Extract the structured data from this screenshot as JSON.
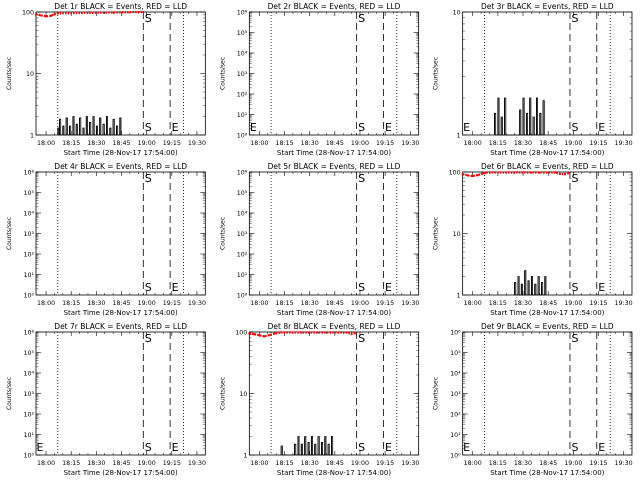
{
  "chart_data": [
    {
      "type": "line",
      "title": "Det 1r BLACK = Events, RED = LLD",
      "xlabel": "Start Time (28-Nov-17 17:54:00)",
      "ylabel": "Counts/sec",
      "yscale": "log",
      "ylim": [
        1,
        100
      ],
      "yticks": [
        "1",
        "10",
        "100"
      ],
      "xticks": [
        "18:00",
        "18:15",
        "18:30",
        "18:45",
        "19:00",
        "19:15",
        "19:30"
      ],
      "markers": [
        {
          "label": "",
          "time": "18:07",
          "style": "dotted"
        },
        {
          "label": "S",
          "time": "18:58",
          "style": "dashed"
        },
        {
          "label": "E",
          "time": "19:14",
          "style": "dashed"
        },
        {
          "label": "",
          "time": "19:22",
          "style": "dotted"
        }
      ],
      "series": [
        {
          "color": "#000000",
          "points": [
            [
              "18:07",
              1.3
            ],
            [
              "18:08",
              1.8
            ],
            [
              "18:10",
              1.4
            ],
            [
              "18:12",
              1.9
            ],
            [
              "18:14",
              1.4
            ],
            [
              "18:16",
              2.0
            ],
            [
              "18:18",
              1.5
            ],
            [
              "18:20",
              1.9
            ],
            [
              "18:22",
              1.3
            ],
            [
              "18:24",
              2.0
            ],
            [
              "18:26",
              1.6
            ],
            [
              "18:28",
              2.0
            ],
            [
              "18:30",
              1.4
            ],
            [
              "18:32",
              1.9
            ],
            [
              "18:34",
              1.5
            ],
            [
              "18:36",
              2.0
            ],
            [
              "18:38",
              1.3
            ],
            [
              "18:40",
              1.8
            ],
            [
              "18:42",
              1.4
            ],
            [
              "18:44",
              1.9
            ]
          ]
        },
        {
          "color": "#ff0000",
          "points": [
            [
              "17:54",
              92
            ],
            [
              "17:57",
              88
            ],
            [
              "18:00",
              85
            ],
            [
              "18:03",
              87
            ],
            [
              "18:05",
              92
            ],
            [
              "18:07",
              95
            ],
            [
              "18:58",
              100
            ]
          ]
        }
      ]
    },
    {
      "type": "line",
      "title": "Det 2r BLACK = Events, RED = LLD",
      "xlabel": "Start Time (28-Nov-17 17:54:00)",
      "ylabel": "Counts/sec",
      "yscale": "log",
      "ylim": [
        1,
        1000000
      ],
      "yticks": [
        "10⁰",
        "10¹",
        "10²",
        "10³",
        "10⁴",
        "10⁵",
        "10⁶"
      ],
      "xticks": [
        "18:00",
        "18:15",
        "18:30",
        "18:45",
        "19:00",
        "19:15",
        "19:30"
      ],
      "markers": [
        {
          "label": "E",
          "time": "17:54",
          "style": "none"
        },
        {
          "label": "",
          "time": "18:07",
          "style": "dotted"
        },
        {
          "label": "S",
          "time": "18:58",
          "style": "dashed"
        },
        {
          "label": "E",
          "time": "19:14",
          "style": "dashed"
        },
        {
          "label": "",
          "time": "19:22",
          "style": "dotted"
        }
      ],
      "series": []
    },
    {
      "type": "line",
      "title": "Det 3r BLACK = Events, RED = LLD",
      "xlabel": "Start Time (28-Nov-17 17:54:00)",
      "ylabel": "Counts/sec",
      "yscale": "log",
      "ylim": [
        1,
        10
      ],
      "yticks": [
        "1",
        "10"
      ],
      "xticks": [
        "18:00",
        "18:15",
        "18:30",
        "18:45",
        "19:00",
        "19:15",
        "19:30"
      ],
      "markers": [
        {
          "label": "E",
          "time": "17:54",
          "style": "none"
        },
        {
          "label": "",
          "time": "18:07",
          "style": "dotted"
        },
        {
          "label": "S",
          "time": "18:58",
          "style": "dashed"
        },
        {
          "label": "E",
          "time": "19:14",
          "style": "dashed"
        },
        {
          "label": "",
          "time": "19:22",
          "style": "dotted"
        }
      ],
      "series": [
        {
          "color": "#000000",
          "points": [
            [
              "18:13",
              1.5
            ],
            [
              "18:15",
              2.0
            ],
            [
              "18:17",
              1.4
            ],
            [
              "18:19",
              2.0
            ],
            [
              "18:28",
              1.6
            ],
            [
              "18:30",
              2.0
            ],
            [
              "18:32",
              1.5
            ],
            [
              "18:34",
              2.0
            ],
            [
              "18:36",
              1.4
            ],
            [
              "18:38",
              2.0
            ],
            [
              "18:40",
              1.5
            ],
            [
              "18:42",
              1.9
            ]
          ]
        }
      ]
    },
    {
      "type": "line",
      "title": "Det 4r BLACK = Events, RED = LLD",
      "xlabel": "Start Time (28-Nov-17 17:54:00)",
      "ylabel": "Counts/sec",
      "yscale": "log",
      "ylim": [
        1,
        1000000
      ],
      "yticks": [
        "10⁰",
        "10¹",
        "10²",
        "10³",
        "10⁴",
        "10⁵",
        "10⁶"
      ],
      "xticks": [
        "18:00",
        "18:15",
        "18:30",
        "18:45",
        "19:00",
        "19:15",
        "19:30"
      ],
      "markers": [
        {
          "label": "",
          "time": "18:07",
          "style": "dotted"
        },
        {
          "label": "S",
          "time": "18:58",
          "style": "dashed"
        },
        {
          "label": "E",
          "time": "19:14",
          "style": "dashed"
        },
        {
          "label": "",
          "time": "19:22",
          "style": "dotted"
        }
      ],
      "series": []
    },
    {
      "type": "line",
      "title": "Det 5r BLACK = Events, RED = LLD",
      "xlabel": "Start Time (28-Nov-17 17:54:00)",
      "ylabel": "Counts/sec",
      "yscale": "log",
      "ylim": [
        1,
        1000000
      ],
      "yticks": [
        "10⁰",
        "10¹",
        "10²",
        "10³",
        "10⁴",
        "10⁵",
        "10⁶"
      ],
      "xticks": [
        "18:00",
        "18:15",
        "18:30",
        "18:45",
        "19:00",
        "19:15",
        "19:30"
      ],
      "markers": [
        {
          "label": "",
          "time": "18:07",
          "style": "dotted"
        },
        {
          "label": "S",
          "time": "18:58",
          "style": "dashed"
        },
        {
          "label": "E",
          "time": "19:14",
          "style": "dashed"
        },
        {
          "label": "",
          "time": "19:22",
          "style": "dotted"
        }
      ],
      "series": []
    },
    {
      "type": "line",
      "title": "Det 6r BLACK = Events, RED = LLD",
      "xlabel": "Start Time (28-Nov-17 17:54:00)",
      "ylabel": "Counts/sec",
      "yscale": "log",
      "ylim": [
        1,
        100
      ],
      "yticks": [
        "1",
        "10",
        "100"
      ],
      "xticks": [
        "18:00",
        "18:15",
        "18:30",
        "18:45",
        "19:00",
        "19:15",
        "19:30"
      ],
      "markers": [
        {
          "label": "",
          "time": "18:07",
          "style": "dotted"
        },
        {
          "label": "S",
          "time": "18:58",
          "style": "dashed"
        },
        {
          "label": "E",
          "time": "19:14",
          "style": "dashed"
        },
        {
          "label": "",
          "time": "19:22",
          "style": "dotted"
        }
      ],
      "series": [
        {
          "color": "#000000",
          "points": [
            [
              "18:25",
              1.6
            ],
            [
              "18:27",
              2.0
            ],
            [
              "18:29",
              1.5
            ],
            [
              "18:31",
              2.5
            ],
            [
              "18:33",
              1.7
            ],
            [
              "18:35",
              2.0
            ],
            [
              "18:37",
              1.5
            ],
            [
              "18:39",
              2.0
            ],
            [
              "18:41",
              1.6
            ],
            [
              "18:43",
              2.0
            ]
          ]
        },
        {
          "color": "#ff0000",
          "points": [
            [
              "17:54",
              92
            ],
            [
              "17:57",
              88
            ],
            [
              "18:00",
              86
            ],
            [
              "18:03",
              89
            ],
            [
              "18:06",
              94
            ],
            [
              "18:08",
              98
            ],
            [
              "18:49",
              98
            ],
            [
              "18:52",
              93
            ],
            [
              "18:55",
              92
            ],
            [
              "18:57",
              96
            ]
          ]
        }
      ]
    },
    {
      "type": "line",
      "title": "Det 7r BLACK = Events, RED = LLD",
      "xlabel": "Start Time (28-Nov-17 17:54:00)",
      "ylabel": "Counts/sec",
      "yscale": "log",
      "ylim": [
        1,
        1000000
      ],
      "yticks": [
        "10⁰",
        "10¹",
        "10²",
        "10³",
        "10⁴",
        "10⁵",
        "10⁶"
      ],
      "xticks": [
        "18:00",
        "18:15",
        "18:30",
        "18:45",
        "19:00",
        "19:15",
        "19:30"
      ],
      "markers": [
        {
          "label": "E",
          "time": "17:54",
          "style": "none"
        },
        {
          "label": "",
          "time": "18:07",
          "style": "dotted"
        },
        {
          "label": "S",
          "time": "18:58",
          "style": "dashed"
        },
        {
          "label": "E",
          "time": "19:14",
          "style": "dashed"
        },
        {
          "label": "",
          "time": "19:22",
          "style": "dotted"
        }
      ],
      "series": []
    },
    {
      "type": "line",
      "title": "Det 8r BLACK = Events, RED = LLD",
      "xlabel": "Start Time (28-Nov-17 17:54:00)",
      "ylabel": "Counts/sec",
      "yscale": "log",
      "ylim": [
        1,
        100
      ],
      "yticks": [
        "1",
        "10",
        "100"
      ],
      "xticks": [
        "18:00",
        "18:15",
        "18:30",
        "18:45",
        "19:00",
        "19:15",
        "19:30"
      ],
      "markers": [
        {
          "label": "",
          "time": "18:07",
          "style": "dotted"
        },
        {
          "label": "S",
          "time": "18:58",
          "style": "dashed"
        },
        {
          "label": "E",
          "time": "19:14",
          "style": "dashed"
        },
        {
          "label": "",
          "time": "19:22",
          "style": "dotted"
        }
      ],
      "series": [
        {
          "color": "#000000",
          "points": [
            [
              "18:13",
              1.4
            ],
            [
              "18:21",
              1.5
            ],
            [
              "18:23",
              2.0
            ],
            [
              "18:25",
              1.5
            ],
            [
              "18:27",
              2.0
            ],
            [
              "18:29",
              1.6
            ],
            [
              "18:31",
              2.0
            ],
            [
              "18:33",
              1.5
            ],
            [
              "18:35",
              2.0
            ],
            [
              "18:37",
              1.6
            ],
            [
              "18:39",
              2.0
            ],
            [
              "18:41",
              1.5
            ],
            [
              "18:43",
              2.0
            ]
          ]
        },
        {
          "color": "#ff0000",
          "points": [
            [
              "17:54",
              95
            ],
            [
              "17:57",
              92
            ],
            [
              "18:00",
              88
            ],
            [
              "18:03",
              85
            ],
            [
              "18:06",
              89
            ],
            [
              "18:09",
              94
            ],
            [
              "18:12",
              98
            ],
            [
              "18:52",
              98
            ],
            [
              "18:55",
              93
            ],
            [
              "18:57",
              96
            ]
          ]
        }
      ]
    },
    {
      "type": "line",
      "title": "Det 9r BLACK = Events, RED = LLD",
      "xlabel": "Start Time (28-Nov-17 17:54:00)",
      "ylabel": "Counts/sec",
      "yscale": "log",
      "ylim": [
        1,
        1000000
      ],
      "yticks": [
        "10⁰",
        "10¹",
        "10²",
        "10³",
        "10⁴",
        "10⁵",
        "10⁶"
      ],
      "xticks": [
        "18:00",
        "18:15",
        "18:30",
        "18:45",
        "19:00",
        "19:15",
        "19:30"
      ],
      "markers": [
        {
          "label": "E",
          "time": "17:54",
          "style": "none"
        },
        {
          "label": "",
          "time": "18:07",
          "style": "dotted"
        },
        {
          "label": "S",
          "time": "18:58",
          "style": "dashed"
        },
        {
          "label": "E",
          "time": "19:14",
          "style": "dashed"
        },
        {
          "label": "",
          "time": "19:22",
          "style": "dotted"
        }
      ],
      "series": []
    }
  ]
}
